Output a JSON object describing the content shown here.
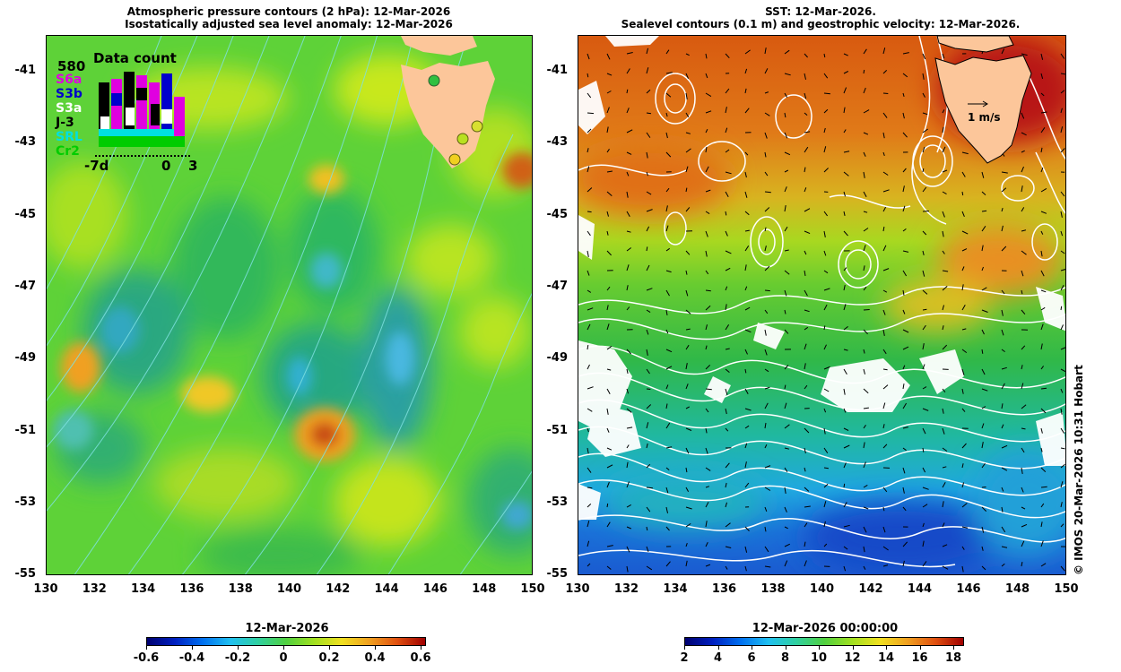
{
  "left_panel": {
    "title_line1": "Atmospheric pressure contours (2 hPa): 12-Mar-2026",
    "title_line2": "Isostatically adjusted sea level anomaly: 12-Mar-2026",
    "legend": {
      "title": "Data count",
      "max_value": "580",
      "missions": [
        {
          "label": "S6a",
          "color": "#e000e0"
        },
        {
          "label": "S3b",
          "color": "#0000cc"
        },
        {
          "label": "S3a",
          "color": "#ffffff"
        },
        {
          "label": "J-3",
          "color": "#000000"
        },
        {
          "label": "SRL",
          "color": "#00e0e0"
        },
        {
          "label": "Cr2",
          "color": "#00cc00"
        }
      ],
      "x_labels": [
        "-7d",
        "0",
        "3"
      ]
    },
    "colorbar": {
      "title": "12-Mar-2026",
      "ticks": [
        "-0.6",
        "-0.4",
        "-0.2",
        "0",
        "0.2",
        "0.4",
        "0.6"
      ]
    }
  },
  "right_panel": {
    "title_line1": "SST: 12-Mar-2026.",
    "title_line2": "Sealevel contours (0.1 m) and geostrophic velocity: 12-Mar-2026.",
    "scale_label": "1 m/s",
    "colorbar": {
      "title": "12-Mar-2026 00:00:00",
      "ticks": [
        "2",
        "4",
        "6",
        "8",
        "10",
        "12",
        "14",
        "16",
        "18"
      ]
    }
  },
  "axes": {
    "y_ticks": [
      "-41",
      "-43",
      "-45",
      "-47",
      "-49",
      "-51",
      "-53",
      "-55"
    ],
    "x_ticks": [
      "130",
      "132",
      "134",
      "136",
      "138",
      "140",
      "142",
      "144",
      "146",
      "148",
      "150"
    ]
  },
  "copyright": "© IMOS 20-Mar-2026 10:31 Hobart",
  "colors": {
    "land": "#fcc69a",
    "contour": "#ffffff",
    "pressure_contour": "#7fe0e0"
  }
}
